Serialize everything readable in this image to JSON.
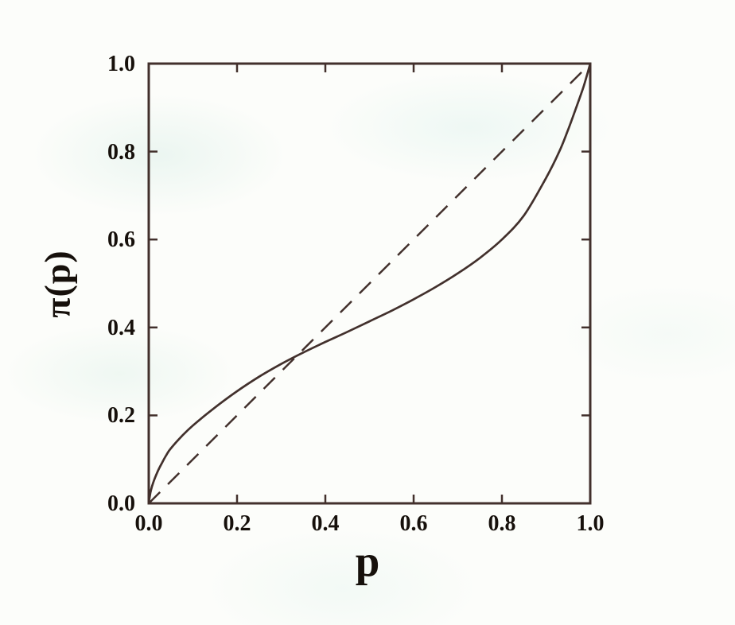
{
  "figure": {
    "description": "Probability weighting function plot: pi(p) versus p with dashed identity line",
    "background": "#fcfdfa"
  },
  "colors": {
    "line": "#42302c",
    "text": "#16100b",
    "background": "#fcfdfa"
  },
  "chart_data": {
    "type": "line",
    "title": "",
    "xlabel": "p",
    "ylabel": "π(p)",
    "xlim": [
      0.0,
      1.0
    ],
    "ylim": [
      0.0,
      1.0
    ],
    "grid": false,
    "legend": "none",
    "frame": "box with inward ticks on all four sides",
    "x_ticks": {
      "values": [
        0.0,
        0.2,
        0.4,
        0.6,
        0.8,
        1.0
      ],
      "labels": [
        "0.0",
        "0.2",
        "0.4",
        "0.6",
        "0.8",
        "1.0"
      ]
    },
    "y_ticks": {
      "values": [
        0.0,
        0.2,
        0.4,
        0.6,
        0.8,
        1.0
      ],
      "labels": [
        "0.0",
        "0.2",
        "0.4",
        "0.6",
        "0.8",
        "1.0"
      ]
    },
    "series": [
      {
        "name": "identity line pi(p)=p",
        "style": "dashed",
        "color": "#42302c",
        "points": [
          [
            0,
            0
          ],
          [
            1,
            1
          ]
        ]
      },
      {
        "name": "probability weighting function pi(p)",
        "style": "solid",
        "color": "#42302c",
        "points": [
          [
            0,
            0
          ],
          [
            0.0025,
            0.017
          ],
          [
            0.005,
            0.03
          ],
          [
            0.01,
            0.047
          ],
          [
            0.02,
            0.072
          ],
          [
            0.03,
            0.092
          ],
          [
            0.04,
            0.11
          ],
          [
            0.05,
            0.125
          ],
          [
            0.075,
            0.153
          ],
          [
            0.1,
            0.177
          ],
          [
            0.15,
            0.218
          ],
          [
            0.2,
            0.255
          ],
          [
            0.25,
            0.288
          ],
          [
            0.3,
            0.317
          ],
          [
            0.35,
            0.343
          ],
          [
            0.4,
            0.367
          ],
          [
            0.45,
            0.39
          ],
          [
            0.5,
            0.414
          ],
          [
            0.55,
            0.438
          ],
          [
            0.6,
            0.464
          ],
          [
            0.65,
            0.492
          ],
          [
            0.7,
            0.523
          ],
          [
            0.75,
            0.558
          ],
          [
            0.8,
            0.6
          ],
          [
            0.85,
            0.655
          ],
          [
            0.9,
            0.74
          ],
          [
            0.93,
            0.8
          ],
          [
            0.95,
            0.85
          ],
          [
            0.97,
            0.905
          ],
          [
            0.985,
            0.948
          ],
          [
            0.995,
            0.982
          ],
          [
            1,
            1
          ]
        ]
      }
    ],
    "crossing_point_approx": [
      0.33,
      0.33
    ]
  }
}
